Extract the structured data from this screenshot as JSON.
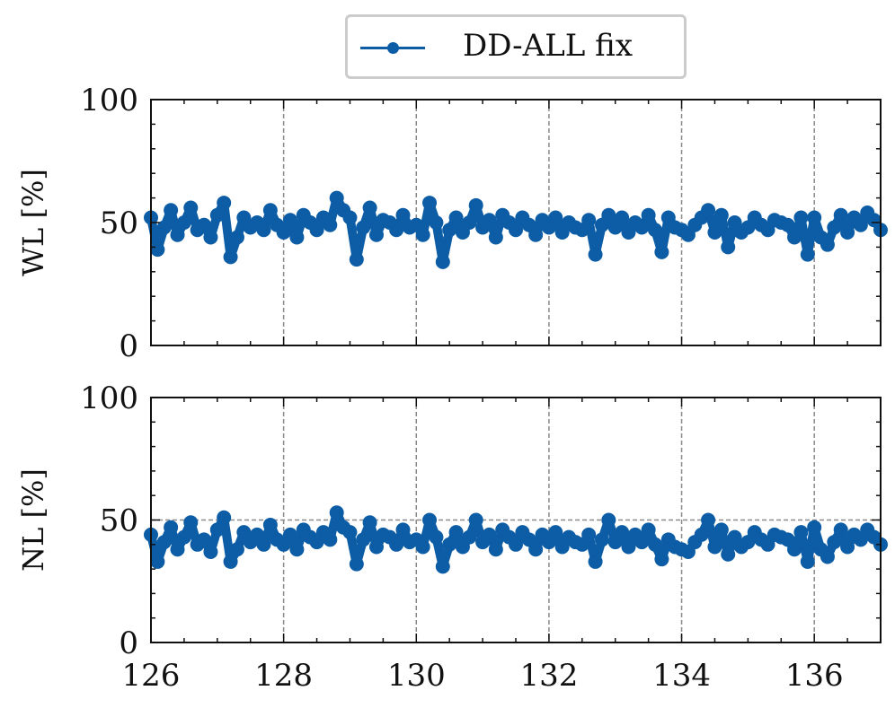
{
  "legend": {
    "label": "DD-ALL fix",
    "color": "#0c5da5"
  },
  "chart_data": [
    {
      "type": "line",
      "ylabel": "WL [%]",
      "xlabel": "",
      "xlim": [
        126,
        137
      ],
      "ylim": [
        0,
        100
      ],
      "xticks": [
        126,
        128,
        130,
        132,
        134,
        136
      ],
      "yticks": [
        0,
        50,
        100
      ],
      "show_xtick_labels": false,
      "grid": "vertical dashed at major x ticks",
      "series": [
        {
          "name": "DD-ALL fix",
          "color": "#0c5da5",
          "x": [
            126.0,
            126.1,
            126.2,
            126.3,
            126.4,
            126.5,
            126.6,
            126.7,
            126.8,
            126.9,
            127.0,
            127.1,
            127.2,
            127.3,
            127.4,
            127.5,
            127.6,
            127.7,
            127.8,
            127.9,
            128.0,
            128.1,
            128.2,
            128.3,
            128.4,
            128.5,
            128.6,
            128.7,
            128.8,
            128.9,
            129.0,
            129.1,
            129.2,
            129.3,
            129.4,
            129.5,
            129.6,
            129.7,
            129.8,
            129.9,
            130.0,
            130.1,
            130.2,
            130.3,
            130.4,
            130.5,
            130.6,
            130.7,
            130.8,
            130.9,
            131.0,
            131.1,
            131.2,
            131.3,
            131.4,
            131.5,
            131.6,
            131.7,
            131.8,
            131.9,
            132.0,
            132.1,
            132.2,
            132.3,
            132.4,
            132.5,
            132.6,
            132.7,
            132.8,
            132.9,
            133.0,
            133.1,
            133.2,
            133.3,
            133.4,
            133.5,
            133.6,
            133.7,
            133.8,
            133.9,
            134.0,
            134.1,
            134.2,
            134.3,
            134.4,
            134.5,
            134.6,
            134.7,
            134.8,
            134.9,
            135.0,
            135.1,
            135.2,
            135.3,
            135.4,
            135.5,
            135.6,
            135.7,
            135.8,
            135.9,
            136.0,
            136.1,
            136.2,
            136.3,
            136.4,
            136.5,
            136.6,
            136.7,
            136.8,
            136.9,
            137.0
          ],
          "y": [
            52,
            39,
            48,
            55,
            45,
            50,
            56,
            47,
            49,
            44,
            53,
            58,
            36,
            44,
            52,
            48,
            50,
            47,
            55,
            49,
            46,
            51,
            44,
            53,
            50,
            47,
            52,
            49,
            60,
            55,
            52,
            35,
            48,
            56,
            45,
            51,
            50,
            47,
            53,
            48,
            49,
            45,
            58,
            50,
            34,
            47,
            52,
            46,
            50,
            57,
            48,
            51,
            44,
            53,
            50,
            47,
            52,
            49,
            45,
            51,
            48,
            52,
            46,
            50,
            48,
            47,
            51,
            37,
            49,
            53,
            48,
            52,
            46,
            50,
            48,
            53,
            47,
            38,
            52,
            48,
            47,
            45,
            49,
            52,
            55,
            46,
            53,
            40,
            50,
            46,
            48,
            52,
            49,
            47,
            51,
            50,
            49,
            44,
            52,
            37,
            52,
            44,
            41,
            48,
            53,
            46,
            52,
            49,
            54,
            51,
            47
          ]
        }
      ]
    },
    {
      "type": "line",
      "ylabel": "NL [%]",
      "xlabel": "",
      "xlim": [
        126,
        137
      ],
      "ylim": [
        0,
        100
      ],
      "xticks": [
        126,
        128,
        130,
        132,
        134,
        136
      ],
      "yticks": [
        0,
        50,
        100
      ],
      "show_xtick_labels": true,
      "grid": "vertical dashed at major x ticks, horizontal dashed at 50",
      "series": [
        {
          "name": "DD-ALL fix",
          "color": "#0c5da5",
          "x": [
            126.0,
            126.1,
            126.2,
            126.3,
            126.4,
            126.5,
            126.6,
            126.7,
            126.8,
            126.9,
            127.0,
            127.1,
            127.2,
            127.3,
            127.4,
            127.5,
            127.6,
            127.7,
            127.8,
            127.9,
            128.0,
            128.1,
            128.2,
            128.3,
            128.4,
            128.5,
            128.6,
            128.7,
            128.8,
            128.9,
            129.0,
            129.1,
            129.2,
            129.3,
            129.4,
            129.5,
            129.6,
            129.7,
            129.8,
            129.9,
            130.0,
            130.1,
            130.2,
            130.3,
            130.4,
            130.5,
            130.6,
            130.7,
            130.8,
            130.9,
            131.0,
            131.1,
            131.2,
            131.3,
            131.4,
            131.5,
            131.6,
            131.7,
            131.8,
            131.9,
            132.0,
            132.1,
            132.2,
            132.3,
            132.4,
            132.5,
            132.6,
            132.7,
            132.8,
            132.9,
            133.0,
            133.1,
            133.2,
            133.3,
            133.4,
            133.5,
            133.6,
            133.7,
            133.8,
            133.9,
            134.0,
            134.1,
            134.2,
            134.3,
            134.4,
            134.5,
            134.6,
            134.7,
            134.8,
            134.9,
            135.0,
            135.1,
            135.2,
            135.3,
            135.4,
            135.5,
            135.6,
            135.7,
            135.8,
            135.9,
            136.0,
            136.1,
            136.2,
            136.3,
            136.4,
            136.5,
            136.6,
            136.7,
            136.8,
            136.9,
            137.0
          ],
          "y": [
            44,
            33,
            41,
            47,
            38,
            43,
            49,
            40,
            42,
            37,
            46,
            51,
            33,
            38,
            45,
            41,
            44,
            40,
            48,
            42,
            40,
            44,
            38,
            46,
            43,
            41,
            45,
            42,
            53,
            47,
            45,
            32,
            42,
            49,
            39,
            44,
            43,
            40,
            46,
            41,
            42,
            39,
            50,
            43,
            31,
            40,
            45,
            39,
            43,
            50,
            41,
            44,
            38,
            46,
            43,
            40,
            45,
            42,
            38,
            44,
            41,
            45,
            39,
            43,
            41,
            40,
            44,
            33,
            42,
            50,
            41,
            45,
            39,
            44,
            41,
            46,
            40,
            34,
            42,
            39,
            38,
            37,
            41,
            44,
            50,
            39,
            46,
            36,
            43,
            39,
            41,
            45,
            42,
            40,
            44,
            43,
            42,
            38,
            45,
            33,
            47,
            38,
            35,
            41,
            46,
            39,
            44,
            42,
            46,
            43,
            40
          ]
        }
      ]
    }
  ]
}
